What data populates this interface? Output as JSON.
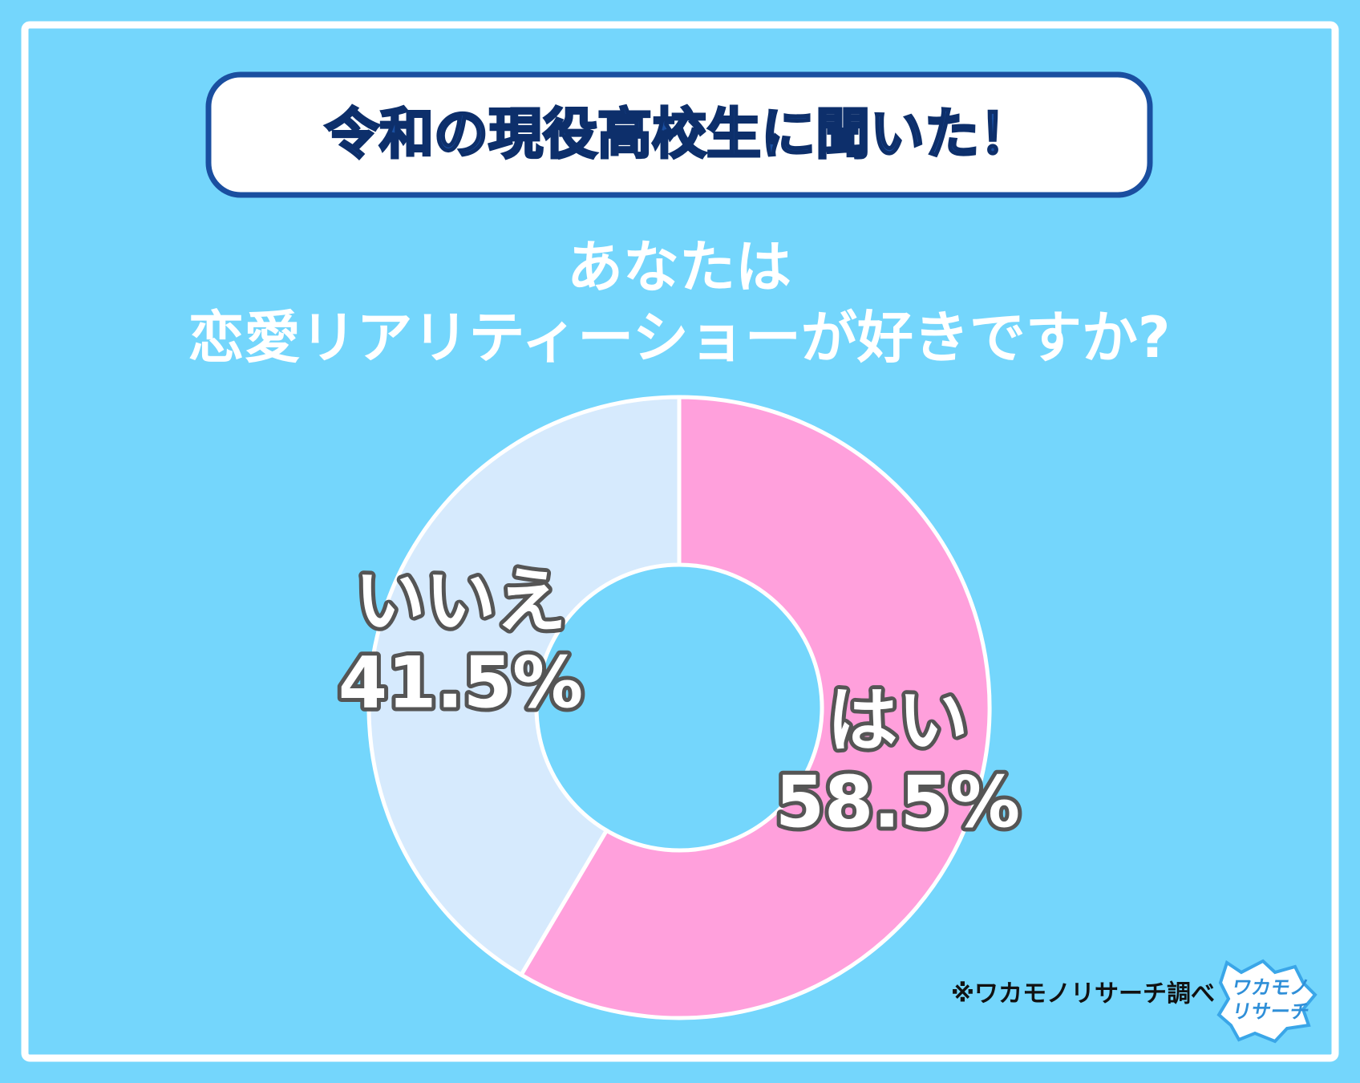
{
  "chart_data": {
    "type": "donut",
    "title": "令和の現役高校生に聞いた！",
    "subtitle": [
      "あなたは",
      "恋愛リアリティーショーが好きですか?"
    ],
    "categories": [
      "はい",
      "いいえ"
    ],
    "values": [
      58.5,
      41.5
    ],
    "value_labels": [
      "58.5%",
      "41.5%"
    ],
    "colors": [
      "#ffa0dc",
      "#d6eafd"
    ],
    "source": "※ワカモノリサーチ調べ",
    "logo": [
      "ワカモノ",
      "リサーチ"
    ]
  }
}
